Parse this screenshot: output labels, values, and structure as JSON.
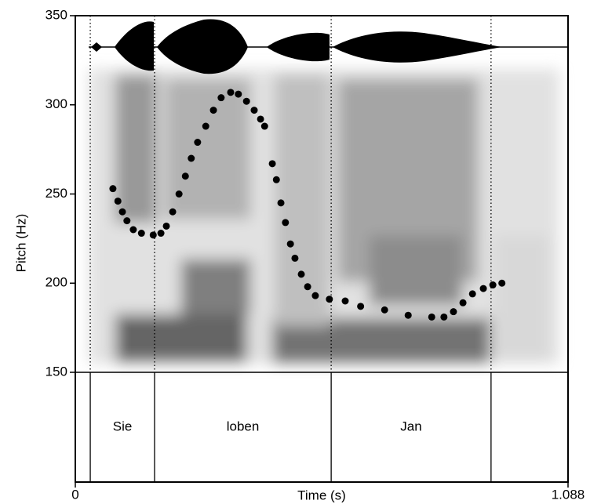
{
  "chart_data": {
    "type": "scatter",
    "x_label": "Time (s)",
    "y_label": "Pitch (Hz)",
    "xlim": [
      0,
      1.088
    ],
    "xticks": [
      0,
      1.088
    ],
    "ylim": [
      150,
      350
    ],
    "yticks": [
      150,
      200,
      250,
      300,
      350
    ],
    "color": "#000000",
    "x": [
      0.083,
      0.094,
      0.104,
      0.114,
      0.128,
      0.146,
      0.172,
      0.189,
      0.201,
      0.215,
      0.229,
      0.243,
      0.256,
      0.27,
      0.288,
      0.305,
      0.322,
      0.343,
      0.36,
      0.378,
      0.395,
      0.409,
      0.418,
      0.435,
      0.444,
      0.454,
      0.464,
      0.475,
      0.485,
      0.499,
      0.513,
      0.53,
      0.561,
      0.596,
      0.63,
      0.683,
      0.735,
      0.787,
      0.814,
      0.835,
      0.856,
      0.877,
      0.901,
      0.922,
      0.942
    ],
    "values": [
      253,
      246,
      240,
      235,
      230,
      228,
      227,
      228,
      232,
      240,
      250,
      260,
      270,
      279,
      288,
      297,
      304,
      307,
      306,
      302,
      297,
      292,
      288,
      267,
      258,
      245,
      234,
      222,
      214,
      205,
      198,
      193,
      191,
      190,
      187,
      185,
      182,
      181,
      181,
      184,
      189,
      194,
      197,
      199,
      200
    ],
    "tier": {
      "boundaries": [
        0.033,
        0.175,
        0.565,
        0.918
      ],
      "labels": [
        "Sie",
        "loben",
        "Jan"
      ]
    }
  }
}
